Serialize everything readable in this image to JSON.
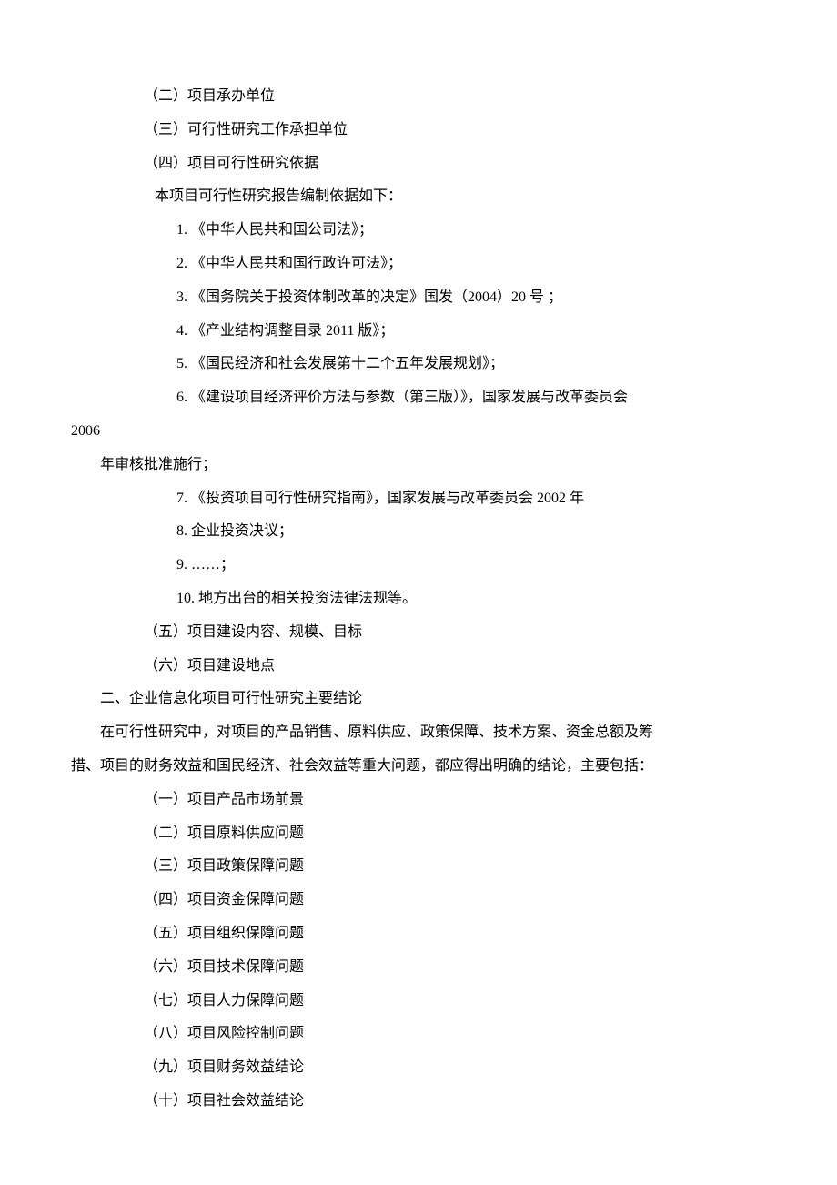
{
  "colors": {
    "text": "#000000",
    "background": "#ffffff"
  },
  "typography": {
    "fontFamily": "SimSun",
    "fontSize": 16,
    "lineHeight": 2.3
  },
  "lines": [
    {
      "text": "（二）项目承办单位",
      "class": "indent-1"
    },
    {
      "text": "（三）可行性研究工作承担单位",
      "class": "indent-1"
    },
    {
      "text": "（四）项目可行性研究依据",
      "class": "indent-1"
    },
    {
      "text": "本项目可行性研究报告编制依据如下：",
      "class": "indent-1",
      "style": "padding-left: 92px;"
    },
    {
      "text": "1.  《中华人民共和国公司法》；",
      "class": "indent-2"
    },
    {
      "text": "2.  《中华人民共和国行政许可法》；",
      "class": "indent-2"
    },
    {
      "text": "3.  《国务院关于投资体制改革的决定》国发（2004）20 号 ；",
      "class": "indent-2"
    },
    {
      "text": "4.  《产业结构调整目录 2011 版》；",
      "class": "indent-2"
    },
    {
      "text": "5.  《国民经济和社会发展第十二个五年发展规划》；",
      "class": "indent-2"
    },
    {
      "text": "6.  《建设项目经济评价方法与参数（第三版）》，国家发展与改革委员会",
      "class": "indent-2"
    },
    {
      "text": "2006",
      "class": "indent-3"
    },
    {
      "text": "年审核批准施行；",
      "class": "indent-3",
      "style": "padding-left: 32px;"
    },
    {
      "text": "7.  《投资项目可行性研究指南》，国家发展与改革委员会 2002 年",
      "class": "indent-2"
    },
    {
      "text": "8.  企业投资决议；",
      "class": "indent-2"
    },
    {
      "text": "9.  ……；",
      "class": "indent-2"
    },
    {
      "text": "10.  地方出台的相关投资法律法规等。",
      "class": "indent-2"
    },
    {
      "text": "（五）项目建设内容、规模、目标",
      "class": "indent-1"
    },
    {
      "text": "（六）项目建设地点",
      "class": "indent-1"
    },
    {
      "text": "二、企业信息化项目可行性研究主要结论",
      "class": "section-header"
    },
    {
      "text": "在可行性研究中，对项目的产品销售、原料供应、政策保障、技术方案、资金总额及筹",
      "class": "paragraph"
    },
    {
      "text": "措、项目的财务效益和国民经济、社会效益等重大问题，都应得出明确的结论，主要包括：",
      "class": "indent-3"
    },
    {
      "text": "（一）项目产品市场前景",
      "class": "indent-1"
    },
    {
      "text": "（二）项目原料供应问题",
      "class": "indent-1"
    },
    {
      "text": "（三）项目政策保障问题",
      "class": "indent-1"
    },
    {
      "text": "（四）项目资金保障问题",
      "class": "indent-1"
    },
    {
      "text": "（五）项目组织保障问题",
      "class": "indent-1"
    },
    {
      "text": "（六）项目技术保障问题",
      "class": "indent-1"
    },
    {
      "text": "（七）项目人力保障问题",
      "class": "indent-1"
    },
    {
      "text": "（八）项目风险控制问题",
      "class": "indent-1"
    },
    {
      "text": "（九）项目财务效益结论",
      "class": "indent-1"
    },
    {
      "text": "（十）项目社会效益结论",
      "class": "indent-1"
    }
  ]
}
